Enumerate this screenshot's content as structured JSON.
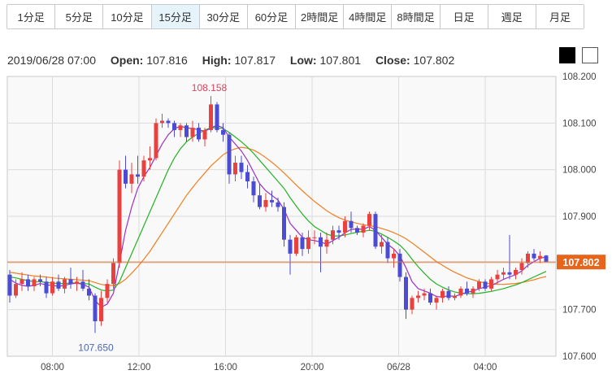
{
  "timeframes": [
    {
      "label": "1分足",
      "active": false
    },
    {
      "label": "5分足",
      "active": false
    },
    {
      "label": "10分足",
      "active": false
    },
    {
      "label": "15分足",
      "active": true
    },
    {
      "label": "30分足",
      "active": false
    },
    {
      "label": "60分足",
      "active": false
    },
    {
      "label": "2時間足",
      "active": false
    },
    {
      "label": "4時間足",
      "active": false
    },
    {
      "label": "8時間足",
      "active": false
    },
    {
      "label": "日足",
      "active": false
    },
    {
      "label": "週足",
      "active": false
    },
    {
      "label": "月足",
      "active": false
    }
  ],
  "ohlc": {
    "datetime": "2019/06/28 07:00",
    "open_label": "Open:",
    "open": "107.816",
    "high_label": "High:",
    "high": "107.817",
    "low_label": "Low:",
    "low": "107.801",
    "close_label": "Close:",
    "close": "107.802"
  },
  "theme_swatches": [
    "dark",
    "light"
  ],
  "colors": {
    "up": "#e8413f",
    "down": "#4b4bd4",
    "ma_short": "#9b2fc9",
    "ma_mid": "#22b322",
    "ma_long": "#f07f1f",
    "price_line": "#e0702a",
    "price_tag": "#e8641a",
    "grid": "#dcdcdc",
    "plot_bg": "#f9f9f9"
  },
  "chart_data": {
    "type": "candlestick",
    "y_ticks": [
      "108.200",
      "108.100",
      "108.000",
      "107.900",
      "107.800",
      "107.700",
      "107.600"
    ],
    "x_ticks": [
      "08:00",
      "12:00",
      "16:00",
      "20:00",
      "06/28",
      "04:00"
    ],
    "current_price": "107.802",
    "high_marker": "108.158",
    "low_marker": "107.650",
    "ylim": [
      107.6,
      108.2
    ],
    "bar_interval": "15min",
    "candles": [
      [
        107.775,
        107.785,
        107.715,
        107.73
      ],
      [
        107.73,
        107.765,
        107.725,
        107.755
      ],
      [
        107.755,
        107.78,
        107.74,
        107.765
      ],
      [
        107.765,
        107.775,
        107.74,
        107.75
      ],
      [
        107.75,
        107.77,
        107.74,
        107.765
      ],
      [
        107.765,
        107.775,
        107.75,
        107.76
      ],
      [
        107.76,
        107.77,
        107.725,
        107.735
      ],
      [
        107.735,
        107.77,
        107.73,
        107.76
      ],
      [
        107.76,
        107.775,
        107.74,
        107.745
      ],
      [
        107.745,
        107.77,
        107.735,
        107.765
      ],
      [
        107.765,
        107.79,
        107.745,
        107.755
      ],
      [
        107.755,
        107.77,
        107.74,
        107.76
      ],
      [
        107.76,
        107.785,
        107.74,
        107.745
      ],
      [
        107.745,
        107.765,
        107.72,
        107.73
      ],
      [
        107.73,
        107.735,
        107.65,
        107.675
      ],
      [
        107.675,
        107.74,
        107.665,
        107.725
      ],
      [
        107.725,
        107.765,
        107.715,
        107.755
      ],
      [
        107.755,
        107.81,
        107.745,
        107.8
      ],
      [
        107.8,
        108.02,
        107.79,
        108.0
      ],
      [
        108.0,
        108.03,
        107.96,
        107.97
      ],
      [
        107.97,
        108.015,
        107.95,
        107.99
      ],
      [
        107.99,
        108.03,
        107.97,
        107.985
      ],
      [
        107.985,
        108.03,
        107.975,
        108.02
      ],
      [
        108.02,
        108.05,
        108.0,
        108.025
      ],
      [
        108.025,
        108.11,
        108.02,
        108.1
      ],
      [
        108.1,
        108.12,
        108.09,
        108.105
      ],
      [
        108.105,
        108.11,
        108.09,
        108.1
      ],
      [
        108.1,
        108.105,
        108.07,
        108.085
      ],
      [
        108.085,
        108.1,
        108.07,
        108.095
      ],
      [
        108.095,
        108.1,
        108.06,
        108.07
      ],
      [
        108.07,
        108.105,
        108.06,
        108.09
      ],
      [
        108.09,
        108.1,
        108.06,
        108.065
      ],
      [
        108.065,
        108.09,
        108.05,
        108.085
      ],
      [
        108.085,
        108.158,
        108.08,
        108.14
      ],
      [
        108.14,
        108.145,
        108.08,
        108.085
      ],
      [
        108.085,
        108.1,
        108.06,
        108.075
      ],
      [
        108.075,
        108.08,
        107.97,
        107.99
      ],
      [
        107.99,
        108.03,
        107.975,
        108.015
      ],
      [
        108.015,
        108.03,
        107.98,
        107.995
      ],
      [
        107.995,
        108.01,
        107.96,
        107.975
      ],
      [
        107.975,
        107.985,
        107.93,
        107.945
      ],
      [
        107.945,
        107.97,
        107.915,
        107.92
      ],
      [
        107.92,
        107.95,
        107.91,
        107.935
      ],
      [
        107.935,
        107.955,
        107.92,
        107.93
      ],
      [
        107.93,
        107.94,
        107.91,
        107.92
      ],
      [
        107.92,
        107.93,
        107.835,
        107.85
      ],
      [
        107.85,
        107.86,
        107.775,
        107.82
      ],
      [
        107.82,
        107.86,
        107.815,
        107.855
      ],
      [
        107.855,
        107.865,
        107.815,
        107.83
      ],
      [
        107.83,
        107.87,
        107.82,
        107.855
      ],
      [
        107.855,
        107.87,
        107.84,
        107.855
      ],
      [
        107.855,
        107.865,
        107.78,
        107.835
      ],
      [
        107.835,
        107.865,
        107.82,
        107.85
      ],
      [
        107.85,
        107.88,
        107.84,
        107.87
      ],
      [
        107.87,
        107.88,
        107.85,
        107.865
      ],
      [
        107.865,
        107.9,
        107.855,
        107.89
      ],
      [
        107.89,
        107.91,
        107.865,
        107.875
      ],
      [
        107.875,
        107.88,
        107.86,
        107.865
      ],
      [
        107.865,
        107.885,
        107.855,
        107.88
      ],
      [
        107.88,
        107.91,
        107.87,
        107.905
      ],
      [
        107.905,
        107.91,
        107.83,
        107.835
      ],
      [
        107.835,
        107.86,
        107.82,
        107.845
      ],
      [
        107.845,
        107.855,
        107.8,
        107.81
      ],
      [
        107.81,
        107.83,
        107.79,
        107.82
      ],
      [
        107.82,
        107.83,
        107.76,
        107.77
      ],
      [
        107.77,
        107.78,
        107.68,
        107.7
      ],
      [
        107.7,
        107.73,
        107.69,
        107.725
      ],
      [
        107.725,
        107.74,
        107.715,
        107.73
      ],
      [
        107.73,
        107.745,
        107.72,
        107.735
      ],
      [
        107.735,
        107.745,
        107.71,
        107.715
      ],
      [
        107.715,
        107.73,
        107.7,
        107.725
      ],
      [
        107.725,
        107.745,
        107.715,
        107.74
      ],
      [
        107.74,
        107.75,
        107.72,
        107.725
      ],
      [
        107.725,
        107.735,
        107.72,
        107.73
      ],
      [
        107.73,
        107.75,
        107.725,
        107.745
      ],
      [
        107.745,
        107.76,
        107.73,
        107.735
      ],
      [
        107.735,
        107.75,
        107.725,
        107.745
      ],
      [
        107.745,
        107.765,
        107.74,
        107.76
      ],
      [
        107.76,
        107.765,
        107.74,
        107.745
      ],
      [
        107.745,
        107.77,
        107.74,
        107.765
      ],
      [
        107.765,
        107.785,
        107.755,
        107.775
      ],
      [
        107.775,
        107.79,
        107.765,
        107.78
      ],
      [
        107.78,
        107.86,
        107.765,
        107.775
      ],
      [
        107.775,
        107.79,
        107.765,
        107.785
      ],
      [
        107.785,
        107.81,
        107.775,
        107.8
      ],
      [
        107.8,
        107.825,
        107.79,
        107.82
      ],
      [
        107.82,
        107.83,
        107.805,
        107.81
      ],
      [
        107.81,
        107.825,
        107.8,
        107.815
      ],
      [
        107.816,
        107.817,
        107.801,
        107.802
      ]
    ],
    "ma_short": [
      107.765,
      107.757,
      107.752,
      107.75,
      107.752,
      107.756,
      107.753,
      107.752,
      107.75,
      107.752,
      107.755,
      107.757,
      107.754,
      107.748,
      107.72,
      107.705,
      107.712,
      107.735,
      107.8,
      107.87,
      107.92,
      107.96,
      107.985,
      108.005,
      108.03,
      108.055,
      108.075,
      108.088,
      108.093,
      108.09,
      108.088,
      108.086,
      108.082,
      108.09,
      108.095,
      108.09,
      108.07,
      108.055,
      108.04,
      108.02,
      107.995,
      107.97,
      107.955,
      107.945,
      107.935,
      107.915,
      107.885,
      107.87,
      107.855,
      107.85,
      107.848,
      107.845,
      107.84,
      107.848,
      107.855,
      107.865,
      107.872,
      107.873,
      107.872,
      107.878,
      107.87,
      107.855,
      107.84,
      107.83,
      107.815,
      107.79,
      107.76,
      107.745,
      107.74,
      107.735,
      107.728,
      107.727,
      107.73,
      107.728,
      107.733,
      107.737,
      107.74,
      107.745,
      107.748,
      107.752,
      107.758,
      107.765,
      107.77,
      107.775,
      107.783,
      107.795,
      107.803,
      107.81,
      107.813
    ],
    "ma_mid": [
      107.77,
      107.768,
      107.765,
      107.762,
      107.76,
      107.76,
      107.758,
      107.757,
      107.756,
      107.756,
      107.757,
      107.757,
      107.756,
      107.755,
      107.748,
      107.742,
      107.74,
      107.742,
      107.76,
      107.79,
      107.82,
      107.85,
      107.88,
      107.91,
      107.94,
      107.97,
      108.0,
      108.025,
      108.045,
      108.06,
      108.07,
      108.078,
      108.085,
      108.09,
      108.09,
      108.088,
      108.08,
      108.07,
      108.06,
      108.048,
      108.035,
      108.02,
      108.005,
      107.99,
      107.975,
      107.96,
      107.94,
      107.922,
      107.905,
      107.89,
      107.878,
      107.87,
      107.862,
      107.858,
      107.858,
      107.86,
      107.863,
      107.866,
      107.868,
      107.87,
      107.868,
      107.862,
      107.855,
      107.847,
      107.838,
      107.825,
      107.808,
      107.792,
      107.778,
      107.765,
      107.755,
      107.748,
      107.742,
      107.738,
      107.735,
      107.734,
      107.734,
      107.735,
      107.737,
      107.739,
      107.742,
      107.745,
      107.749,
      107.753,
      107.758,
      107.764,
      107.77,
      107.776,
      107.782
    ],
    "ma_long": [
      107.78,
      107.778,
      107.776,
      107.774,
      107.772,
      107.771,
      107.77,
      107.768,
      107.767,
      107.766,
      107.765,
      107.764,
      107.763,
      107.762,
      107.758,
      107.754,
      107.752,
      107.752,
      107.756,
      107.765,
      107.778,
      107.792,
      107.808,
      107.825,
      107.845,
      107.865,
      107.885,
      107.905,
      107.925,
      107.945,
      107.962,
      107.978,
      107.993,
      108.008,
      108.02,
      108.032,
      108.04,
      108.045,
      108.048,
      108.046,
      108.042,
      108.035,
      108.026,
      108.016,
      108.005,
      107.993,
      107.98,
      107.967,
      107.955,
      107.943,
      107.932,
      107.922,
      107.912,
      107.904,
      107.897,
      107.892,
      107.888,
      107.885,
      107.882,
      107.88,
      107.878,
      107.874,
      107.87,
      107.865,
      107.859,
      107.852,
      107.843,
      107.833,
      107.823,
      107.813,
      107.803,
      107.795,
      107.787,
      107.78,
      107.774,
      107.768,
      107.764,
      107.76,
      107.757,
      107.755,
      107.754,
      107.754,
      107.755,
      107.756,
      107.758,
      107.761,
      107.764,
      107.768,
      107.771
    ]
  }
}
